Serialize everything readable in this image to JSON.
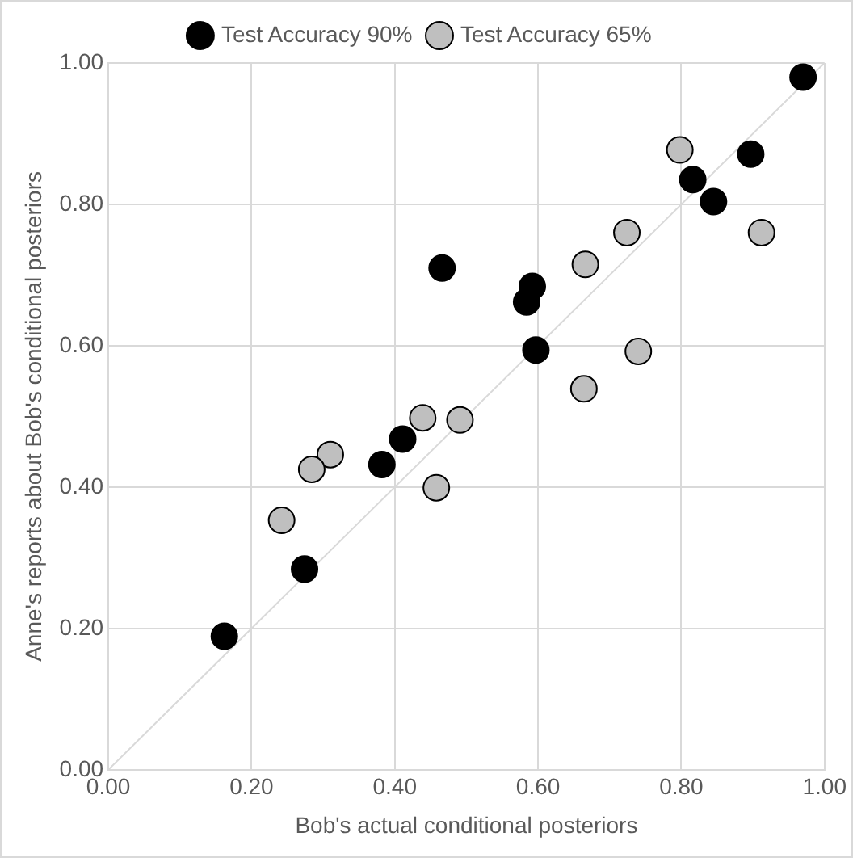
{
  "chart_data": {
    "type": "scatter",
    "xlabel": "Bob's actual conditional posteriors",
    "ylabel": "Anne's reports about Bob's conditional posteriors",
    "xlim": [
      0,
      1
    ],
    "xticks": [
      {
        "value": 0,
        "label": "0.00"
      },
      {
        "value": 0.2,
        "label": "0.20"
      },
      {
        "value": 0.4,
        "label": "0.40"
      },
      {
        "value": 0.6,
        "label": "0.60"
      },
      {
        "value": 0.8,
        "label": "0.80"
      },
      {
        "value": 1,
        "label": "1.00"
      }
    ],
    "ylim": [
      0,
      1
    ],
    "yticks": [
      {
        "value": 0,
        "label": "0.00"
      },
      {
        "value": 0.2,
        "label": "0.20"
      },
      {
        "value": 0.4,
        "label": "0.40"
      },
      {
        "value": 0.6,
        "label": "0.60"
      },
      {
        "value": 0.8,
        "label": "0.80"
      },
      {
        "value": 1,
        "label": "1.00"
      }
    ],
    "grid": true,
    "legend": "top",
    "marker": "circle",
    "series": [
      {
        "name": "Test Accuracy 90%",
        "color": "#000000",
        "x": [
          0.97,
          0.897,
          0.816,
          0.845,
          0.466,
          0.592,
          0.584,
          0.597,
          0.411,
          0.382,
          0.274,
          0.162
        ],
        "values": [
          0.98,
          0.871,
          0.835,
          0.804,
          0.71,
          0.684,
          0.662,
          0.594,
          0.468,
          0.432,
          0.284,
          0.189
        ]
      },
      {
        "name": "Test Accuracy 65%",
        "color": "#bfbfbf",
        "x": [
          0.798,
          0.912,
          0.724,
          0.666,
          0.74,
          0.664,
          0.439,
          0.491,
          0.31,
          0.284,
          0.458,
          0.242
        ],
        "values": [
          0.877,
          0.76,
          0.76,
          0.715,
          0.592,
          0.539,
          0.498,
          0.495,
          0.446,
          0.425,
          0.399,
          0.353
        ]
      },
      {
        "type": "line",
        "marker": "none",
        "color": "#d9d9d9",
        "x": [
          0,
          1
        ],
        "values": [
          0,
          1
        ]
      }
    ]
  }
}
